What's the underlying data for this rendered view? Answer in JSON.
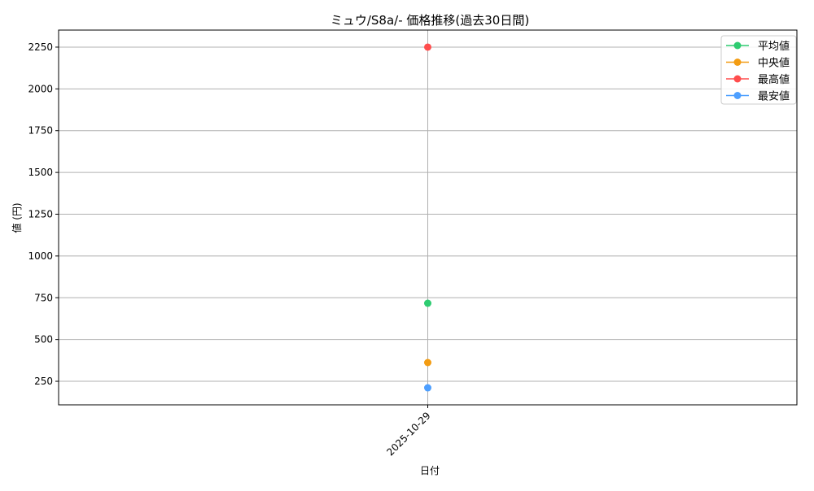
{
  "chart_data": {
    "type": "line",
    "title": "ミュウ/S8a/- 価格推移(過去30日間)",
    "xlabel": "日付",
    "ylabel": "値 (円)",
    "categories": [
      "2025-10-29"
    ],
    "ylim": [
      109,
      2352
    ],
    "yticks": [
      250,
      500,
      750,
      1000,
      1250,
      1500,
      1750,
      2000,
      2250
    ],
    "grid": true,
    "legend_position": "top-right",
    "series": [
      {
        "name": "平均値",
        "values": [
          717
        ],
        "color": "#2ecc71"
      },
      {
        "name": "中央値",
        "values": [
          362
        ],
        "color": "#f39c12"
      },
      {
        "name": "最高値",
        "values": [
          2250
        ],
        "color": "#ff4d4d"
      },
      {
        "name": "最安値",
        "values": [
          211
        ],
        "color": "#4d9fff"
      }
    ]
  }
}
